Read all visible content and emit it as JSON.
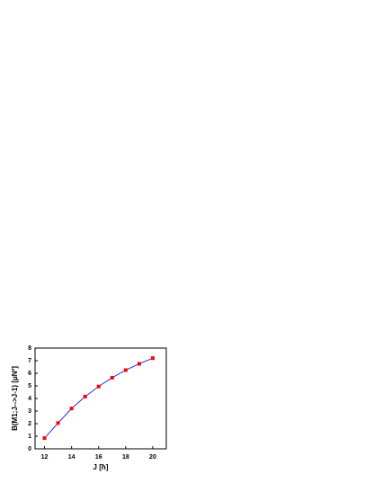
{
  "chart_data": {
    "type": "line",
    "x_label": "J [ħ]",
    "y_label": "B(M1;J-->J-1) [μN²]",
    "x": [
      12,
      13,
      14,
      15,
      16,
      17,
      18,
      19,
      20
    ],
    "series": [
      {
        "name": "B(M1)",
        "color": "#0000ff",
        "marker_color": "#ff0000",
        "values": [
          0.85,
          2.05,
          3.2,
          4.15,
          4.95,
          5.65,
          6.25,
          6.75,
          7.2
        ]
      }
    ],
    "xlim": [
      11.3,
      21
    ],
    "xticks": [
      12,
      14,
      16,
      18,
      20
    ],
    "ylim": [
      0,
      8
    ],
    "yticks": [
      0,
      1,
      2,
      3,
      4,
      5,
      6,
      7,
      8
    ]
  }
}
